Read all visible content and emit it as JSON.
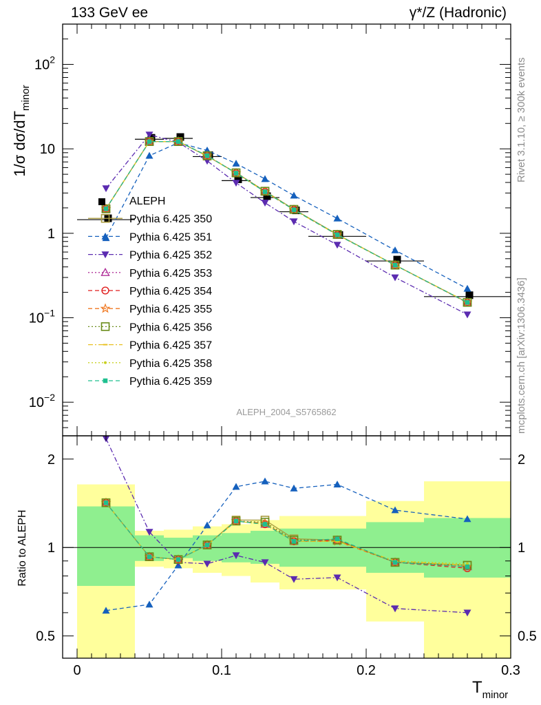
{
  "header": {
    "left": "133 GeV ee",
    "right": "γ*/Z (Hadronic)"
  },
  "side_labels": {
    "top": "Rivet 3.1.10, ≥ 300k events",
    "bottom": "mcplots.cern.ch [arXiv:1306.3436]"
  },
  "watermark": "ALEPH_2004_S5765862",
  "axes": {
    "ylabel_top": "1/σ dσ/dT",
    "ylabel_top_sub": "minor",
    "ylabel_ratio": "Ratio to ALEPH",
    "xlabel": "T",
    "xlabel_sub": "minor",
    "xticks": [
      "0",
      "0.1",
      "0.2",
      "0.3"
    ],
    "yticks_top": [
      {
        "base": "10",
        "exp": "−2"
      },
      {
        "base": "10",
        "exp": "−1"
      },
      {
        "base": "1",
        "exp": ""
      },
      {
        "base": "10",
        "exp": ""
      },
      {
        "base": "10",
        "exp": "2"
      }
    ],
    "yticks_ratio": [
      "0.5",
      "1",
      "2"
    ]
  },
  "chart_data": [
    {
      "type": "scatter",
      "panel": "main",
      "yscale": "log",
      "xlim": [
        -0.01,
        0.3
      ],
      "ylim": [
        0.004,
        300
      ],
      "x": [
        0.02,
        0.05,
        0.07,
        0.09,
        0.11,
        0.13,
        0.15,
        0.18,
        0.22,
        0.27
      ],
      "xerr": [
        0.02,
        0.01,
        0.01,
        0.01,
        0.01,
        0.01,
        0.01,
        0.02,
        0.02,
        0.03
      ],
      "series": [
        {
          "name": "ALEPH",
          "style": "data",
          "color": "#000000",
          "marker": "square-filled",
          "values": [
            1.45,
            13.0,
            13.3,
            8.1,
            4.2,
            2.65,
            1.8,
            0.92,
            0.47,
            0.178
          ]
        },
        {
          "name": "Pythia 6.425 350",
          "style": "solid",
          "color": "#a89a3c",
          "marker": "square-open",
          "values": [
            1.95,
            12.2,
            12.2,
            8.2,
            5.2,
            3.15,
            1.92,
            0.97,
            0.42,
            0.152
          ]
        },
        {
          "name": "Pythia 6.425 351",
          "style": "dashed",
          "color": "#1560bd",
          "marker": "triangle-up-filled",
          "values": [
            0.88,
            8.3,
            11.8,
            9.6,
            6.7,
            4.4,
            2.8,
            1.5,
            0.63,
            0.221
          ]
        },
        {
          "name": "Pythia 6.425 352",
          "style": "dashdot",
          "color": "#5b2bb0",
          "marker": "triangle-down-filled",
          "values": [
            3.4,
            14.7,
            12.0,
            7.2,
            3.95,
            2.3,
            1.38,
            0.73,
            0.3,
            0.109
          ]
        },
        {
          "name": "Pythia 6.425 353",
          "style": "dotted",
          "color": "#b0309a",
          "marker": "triangle-up-open",
          "values": [
            1.95,
            12.2,
            12.2,
            8.3,
            5.15,
            3.1,
            1.9,
            0.96,
            0.42,
            0.152
          ]
        },
        {
          "name": "Pythia 6.425 354",
          "style": "dashed",
          "color": "#e01c1c",
          "marker": "circle-open",
          "values": [
            1.95,
            12.2,
            12.2,
            8.3,
            5.15,
            3.1,
            1.9,
            0.96,
            0.42,
            0.151
          ]
        },
        {
          "name": "Pythia 6.425 355",
          "style": "dashed",
          "color": "#f07820",
          "marker": "star-open",
          "values": [
            1.95,
            12.2,
            12.2,
            8.3,
            5.15,
            3.1,
            1.9,
            0.96,
            0.42,
            0.152
          ]
        },
        {
          "name": "Pythia 6.425 356",
          "style": "dotted",
          "color": "#6a8c1a",
          "marker": "square-open",
          "values": [
            1.95,
            12.2,
            12.2,
            8.3,
            5.2,
            3.15,
            1.92,
            0.97,
            0.42,
            0.152
          ]
        },
        {
          "name": "Pythia 6.425 357",
          "style": "dashdot",
          "color": "#e8c020",
          "marker": "dash",
          "values": [
            1.95,
            12.2,
            12.2,
            8.3,
            5.15,
            3.1,
            1.9,
            0.96,
            0.42,
            0.153
          ]
        },
        {
          "name": "Pythia 6.425 358",
          "style": "dotted",
          "color": "#c8d020",
          "marker": "dot",
          "values": [
            1.95,
            12.2,
            12.2,
            8.3,
            5.15,
            3.1,
            1.9,
            0.96,
            0.42,
            0.153
          ]
        },
        {
          "name": "Pythia 6.425 359",
          "style": "dashed",
          "color": "#1fbf8f",
          "marker": "square-small-filled",
          "values": [
            1.95,
            12.2,
            12.2,
            8.3,
            5.15,
            3.1,
            1.9,
            0.96,
            0.42,
            0.152
          ]
        }
      ]
    },
    {
      "type": "scatter",
      "panel": "ratio",
      "yscale": "log",
      "xlim": [
        -0.01,
        0.3
      ],
      "ylim": [
        0.42,
        2.4
      ],
      "reference_line": 1,
      "bands": {
        "bins": [
          [
            0.0,
            0.04
          ],
          [
            0.04,
            0.06
          ],
          [
            0.06,
            0.08
          ],
          [
            0.08,
            0.1
          ],
          [
            0.1,
            0.12
          ],
          [
            0.12,
            0.14
          ],
          [
            0.14,
            0.16
          ],
          [
            0.16,
            0.2
          ],
          [
            0.2,
            0.24
          ],
          [
            0.24,
            0.3
          ]
        ],
        "inner": [
          [
            0.74,
            1.38
          ],
          [
            0.9,
            1.1
          ],
          [
            0.92,
            1.08
          ],
          [
            0.9,
            1.1
          ],
          [
            0.89,
            1.12
          ],
          [
            0.88,
            1.14
          ],
          [
            0.86,
            1.16
          ],
          [
            0.86,
            1.16
          ],
          [
            0.82,
            1.22
          ],
          [
            0.79,
            1.26
          ]
        ],
        "outer": [
          [
            0.36,
            1.64
          ],
          [
            0.86,
            1.14
          ],
          [
            0.85,
            1.15
          ],
          [
            0.82,
            1.18
          ],
          [
            0.8,
            1.2
          ],
          [
            0.76,
            1.24
          ],
          [
            0.72,
            1.28
          ],
          [
            0.72,
            1.28
          ],
          [
            0.56,
            1.44
          ],
          [
            0.36,
            1.68
          ]
        ],
        "inner_color": "#8fef8f",
        "outer_color": "#ffff9c"
      },
      "x": [
        0.02,
        0.05,
        0.07,
        0.09,
        0.11,
        0.13,
        0.15,
        0.18,
        0.22,
        0.27
      ],
      "series": [
        {
          "name": "Pythia 6.425 350",
          "color": "#a89a3c",
          "style": "solid",
          "values": [
            1.42,
            0.93,
            0.91,
            1.02,
            1.24,
            1.24,
            1.07,
            1.06,
            0.89,
            0.87
          ]
        },
        {
          "name": "Pythia 6.425 351",
          "color": "#1560bd",
          "style": "dashed",
          "values": [
            0.61,
            0.64,
            0.87,
            1.19,
            1.61,
            1.68,
            1.59,
            1.64,
            1.34,
            1.25
          ]
        },
        {
          "name": "Pythia 6.425 352",
          "color": "#5b2bb0",
          "style": "dashdot",
          "values": [
            2.35,
            1.13,
            0.89,
            0.88,
            0.94,
            0.89,
            0.78,
            0.79,
            0.62,
            0.6
          ]
        },
        {
          "name": "Pythia 6.425 353",
          "color": "#b0309a",
          "style": "dotted",
          "values": [
            1.42,
            0.93,
            0.91,
            1.02,
            1.23,
            1.2,
            1.05,
            1.06,
            0.89,
            0.86
          ]
        },
        {
          "name": "Pythia 6.425 354",
          "color": "#e01c1c",
          "style": "dashed",
          "values": [
            1.42,
            0.93,
            0.91,
            1.02,
            1.23,
            1.2,
            1.05,
            1.06,
            0.89,
            0.85
          ]
        },
        {
          "name": "Pythia 6.425 355",
          "color": "#f07820",
          "style": "dashed",
          "values": [
            1.42,
            0.93,
            0.91,
            1.02,
            1.23,
            1.21,
            1.05,
            1.05,
            0.89,
            0.86
          ]
        },
        {
          "name": "Pythia 6.425 356",
          "color": "#6a8c1a",
          "style": "dotted",
          "values": [
            1.42,
            0.93,
            0.91,
            1.02,
            1.23,
            1.22,
            1.06,
            1.06,
            0.89,
            0.87
          ]
        },
        {
          "name": "Pythia 6.425 357",
          "color": "#e8c020",
          "style": "dashdot",
          "values": [
            1.42,
            0.93,
            0.91,
            1.02,
            1.23,
            1.2,
            1.05,
            1.05,
            0.9,
            0.87
          ]
        },
        {
          "name": "Pythia 6.425 358",
          "color": "#c8d020",
          "style": "dotted",
          "values": [
            1.42,
            0.93,
            0.91,
            1.02,
            1.23,
            1.2,
            1.05,
            1.05,
            0.9,
            0.88
          ]
        },
        {
          "name": "Pythia 6.425 359",
          "color": "#1fbf8f",
          "style": "dashed",
          "values": [
            1.42,
            0.93,
            0.91,
            1.02,
            1.23,
            1.2,
            1.05,
            1.07,
            0.89,
            0.86
          ]
        }
      ]
    }
  ]
}
